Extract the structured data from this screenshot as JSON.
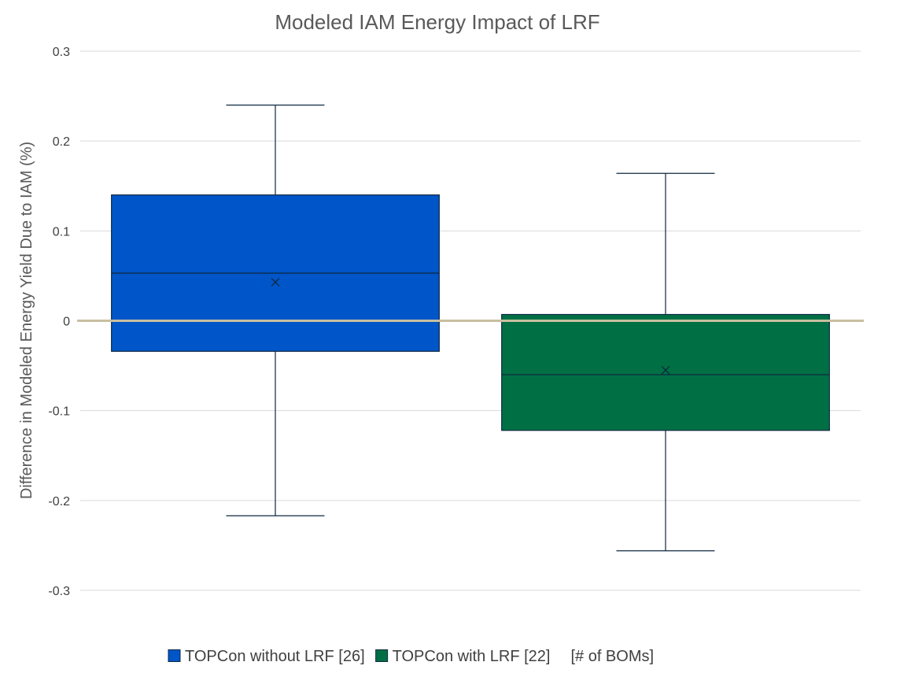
{
  "chart_data": {
    "type": "box",
    "title": "Modeled IAM Energy Impact of LRF",
    "xlabel": "",
    "ylabel": "Difference in Modeled Energy Yield Due to IAM (%)",
    "ylim": [
      -0.3,
      0.3
    ],
    "yticks": [
      0.3,
      0.2,
      0.1,
      0,
      -0.1,
      -0.2,
      -0.3
    ],
    "ytick_labels": [
      "0.3",
      "0.2",
      "0.1",
      "0",
      "-0.1",
      "-0.2",
      "-0.3"
    ],
    "grid": true,
    "legend_position": "bottom",
    "reference_line": {
      "y": 0,
      "color": "#c8bfa0"
    },
    "series": [
      {
        "name": "TOPCon without LRF [26]",
        "color": "#0055c8",
        "min": -0.217,
        "q1": -0.034,
        "median": 0.053,
        "mean": 0.043,
        "q3": 0.14,
        "max": 0.24
      },
      {
        "name": "TOPCon with LRF [22]",
        "color": "#007044",
        "min": -0.256,
        "q1": -0.122,
        "median": -0.06,
        "mean": -0.055,
        "q3": 0.007,
        "max": 0.164
      }
    ],
    "legend_note": "[# of BOMs]"
  }
}
